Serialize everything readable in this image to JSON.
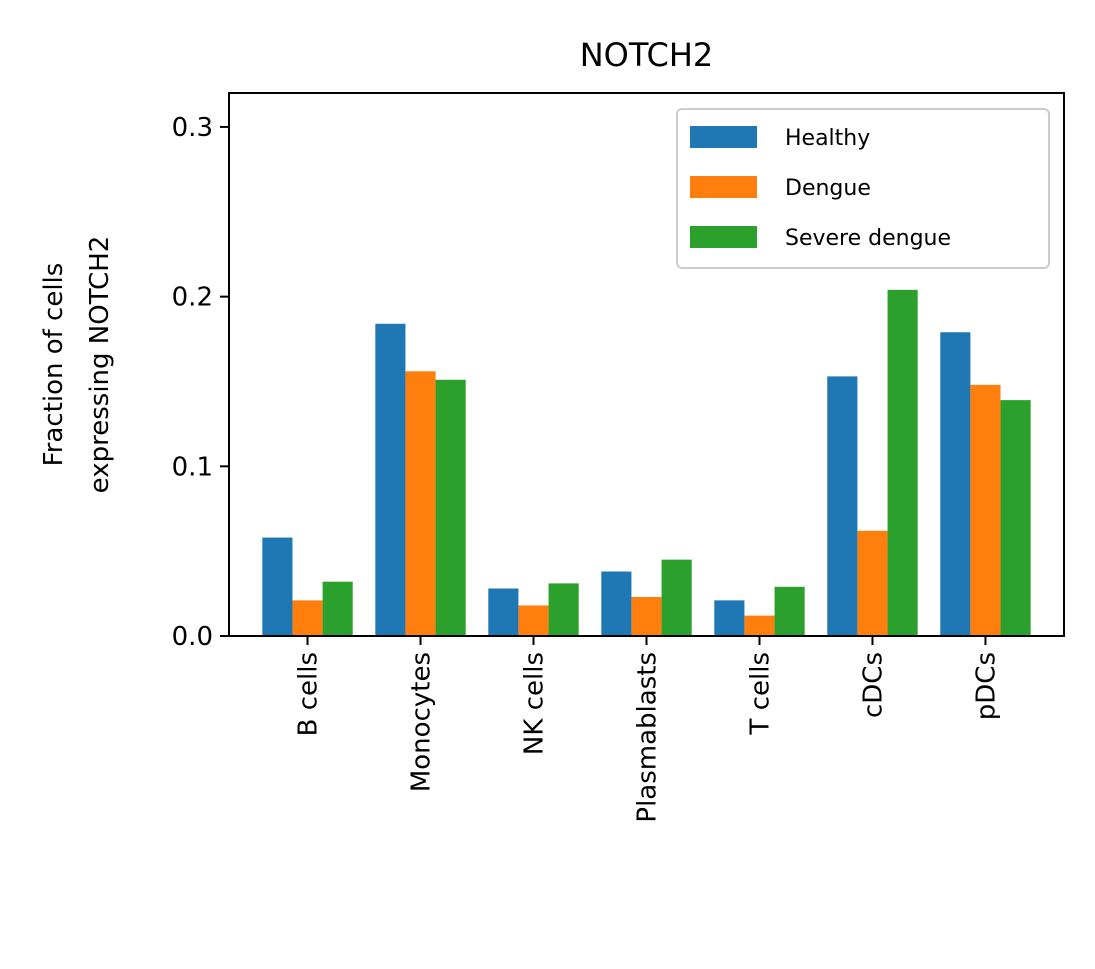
{
  "chart_data": {
    "type": "bar",
    "title": "NOTCH2",
    "ylabel_lines": [
      "Fraction of cells",
      "expressing NOTCH2"
    ],
    "xlabel": "",
    "categories": [
      "B cells",
      "Monocytes",
      "NK cells",
      "Plasmablasts",
      "T cells",
      "cDCs",
      "pDCs"
    ],
    "series": [
      {
        "name": "Healthy",
        "color": "#1f77b4",
        "values": [
          0.058,
          0.184,
          0.028,
          0.038,
          0.021,
          0.153,
          0.179
        ]
      },
      {
        "name": "Dengue",
        "color": "#ff7f0e",
        "values": [
          0.021,
          0.156,
          0.018,
          0.023,
          0.012,
          0.062,
          0.148
        ]
      },
      {
        "name": "Severe dengue",
        "color": "#2ca02c",
        "values": [
          0.032,
          0.151,
          0.031,
          0.045,
          0.029,
          0.204,
          0.139
        ]
      }
    ],
    "ylim": [
      0,
      0.32
    ],
    "yticks": [
      0.0,
      0.1,
      0.2,
      0.3
    ],
    "ytick_labels": [
      "0.0",
      "0.1",
      "0.2",
      "0.3"
    ],
    "grid": false,
    "legend_position": "top-right"
  }
}
